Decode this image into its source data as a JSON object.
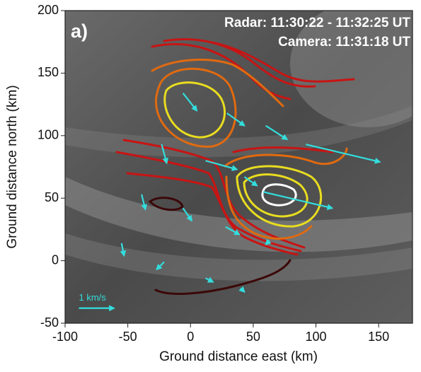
{
  "chart_data": {
    "type": "vector",
    "panel_label": "a)",
    "annotations": [
      "Radar: 11:30:22 - 11:32:25 UT",
      "Camera: 11:31:18 UT"
    ],
    "xlabel": "Ground distance east (km)",
    "ylabel": "Ground distance north (km)",
    "xlim": [
      -100,
      177
    ],
    "ylim": [
      -50,
      200
    ],
    "xticks": [
      -100,
      -50,
      0,
      50,
      100,
      150
    ],
    "yticks": [
      -50,
      0,
      50,
      100,
      150,
      200
    ],
    "color": "#33dddd",
    "vectors": {
      "x": [
        -6,
        29,
        60,
        92,
        12,
        -23,
        43,
        58,
        -39,
        -6,
        28,
        63,
        -55,
        -21,
        12,
        40
      ],
      "y": [
        134,
        118,
        108,
        93,
        80,
        93,
        67,
        55,
        53,
        42,
        27,
        16,
        14,
        -1,
        -14,
        -22
      ],
      "dx": [
        11,
        14,
        17,
        59,
        25,
        4,
        10,
        55,
        3,
        7,
        11,
        -3,
        2,
        -6,
        6,
        3
      ],
      "dy": [
        -14,
        -10,
        -11,
        -14,
        -7,
        -15,
        -7,
        -13,
        -12,
        -10,
        -6,
        -3,
        -10,
        -6,
        -3,
        -3
      ]
    },
    "key": {
      "x": -89,
      "y": -38,
      "dx": 28,
      "label": "1 km/s"
    }
  }
}
